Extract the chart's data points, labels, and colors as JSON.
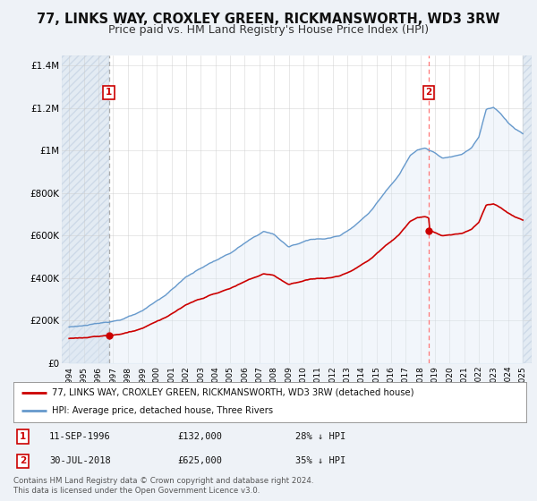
{
  "title": "77, LINKS WAY, CROXLEY GREEN, RICKMANSWORTH, WD3 3RW",
  "subtitle": "Price paid vs. HM Land Registry's House Price Index (HPI)",
  "title_fontsize": 10.5,
  "subtitle_fontsize": 9,
  "background_color": "#f0f4f8",
  "plot_bg_color": "#ffffff",
  "ylim": [
    0,
    1400000
  ],
  "yticks": [
    0,
    200000,
    400000,
    600000,
    800000,
    1000000,
    1200000,
    1400000
  ],
  "ytick_labels": [
    "£0",
    "£200K",
    "£400K",
    "£600K",
    "£800K",
    "£1M",
    "£1.2M",
    "£1.4M"
  ],
  "transaction1_x": 1996.72,
  "transaction1_price": 132000,
  "transaction2_x": 2018.58,
  "transaction2_price": 625000,
  "legend_property": "77, LINKS WAY, CROXLEY GREEN, RICKMANSWORTH, WD3 3RW (detached house)",
  "legend_hpi": "HPI: Average price, detached house, Three Rivers",
  "footnote": "Contains HM Land Registry data © Crown copyright and database right 2024.\nThis data is licensed under the Open Government Licence v3.0.",
  "property_line_color": "#cc0000",
  "hpi_line_color": "#6699cc",
  "marker_color": "#cc0000",
  "vline1_color": "#999999",
  "vline2_color": "#ff6666",
  "hatch_bg": "#dce6f0",
  "anno_date1": "11-SEP-1996",
  "anno_price1": "£132,000",
  "anno_pct1": "28% ↓ HPI",
  "anno_date2": "30-JUL-2018",
  "anno_price2": "£625,000",
  "anno_pct2": "35% ↓ HPI"
}
